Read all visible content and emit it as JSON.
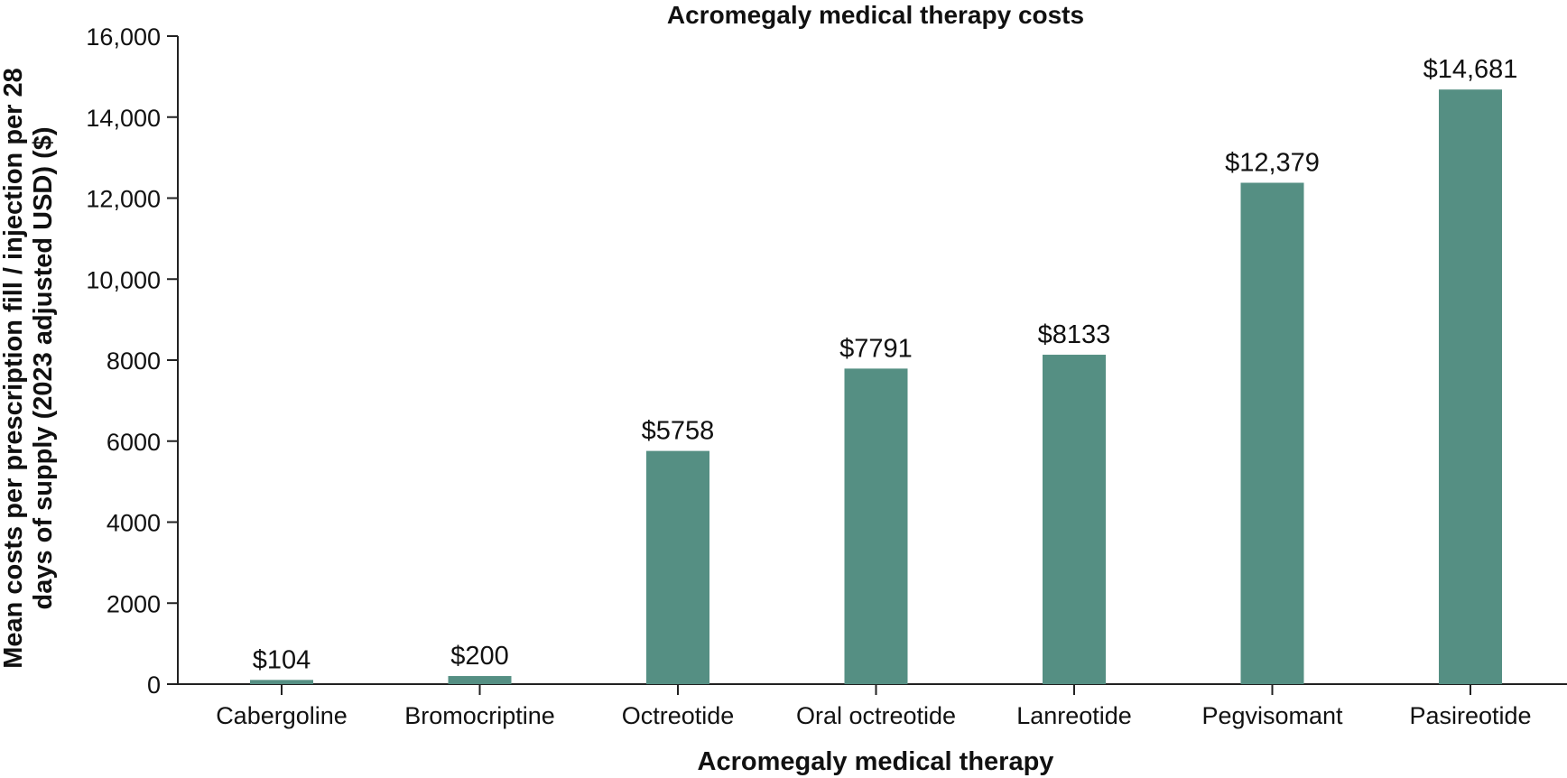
{
  "chart_data": {
    "type": "bar",
    "title": "Acromegaly medical therapy costs",
    "xlabel": "Acromegaly medical therapy",
    "ylabel_lines": [
      "Mean costs per prescription fill / injection per 28",
      "days of supply (2023 adjusted USD) ($)"
    ],
    "categories": [
      "Cabergoline",
      "Bromocriptine",
      "Octreotide",
      "Oral octreotide",
      "Lanreotide",
      "Pegvisomant",
      "Pasireotide"
    ],
    "values": [
      104,
      200,
      5758,
      7791,
      8133,
      12379,
      14681
    ],
    "data_labels": [
      "$104",
      "$200",
      "$5758",
      "$7791",
      "$8133",
      "$12,379",
      "$14,681"
    ],
    "ylim": [
      0,
      16000
    ],
    "yticks": [
      0,
      2000,
      4000,
      6000,
      8000,
      10000,
      12000,
      14000,
      16000
    ],
    "ytick_labels": [
      "0",
      "2000",
      "4000",
      "6000",
      "8000",
      "10,000",
      "12,000",
      "14,000",
      "16,000"
    ],
    "bar_color": "#558f83",
    "grid": false,
    "legend": "none"
  }
}
